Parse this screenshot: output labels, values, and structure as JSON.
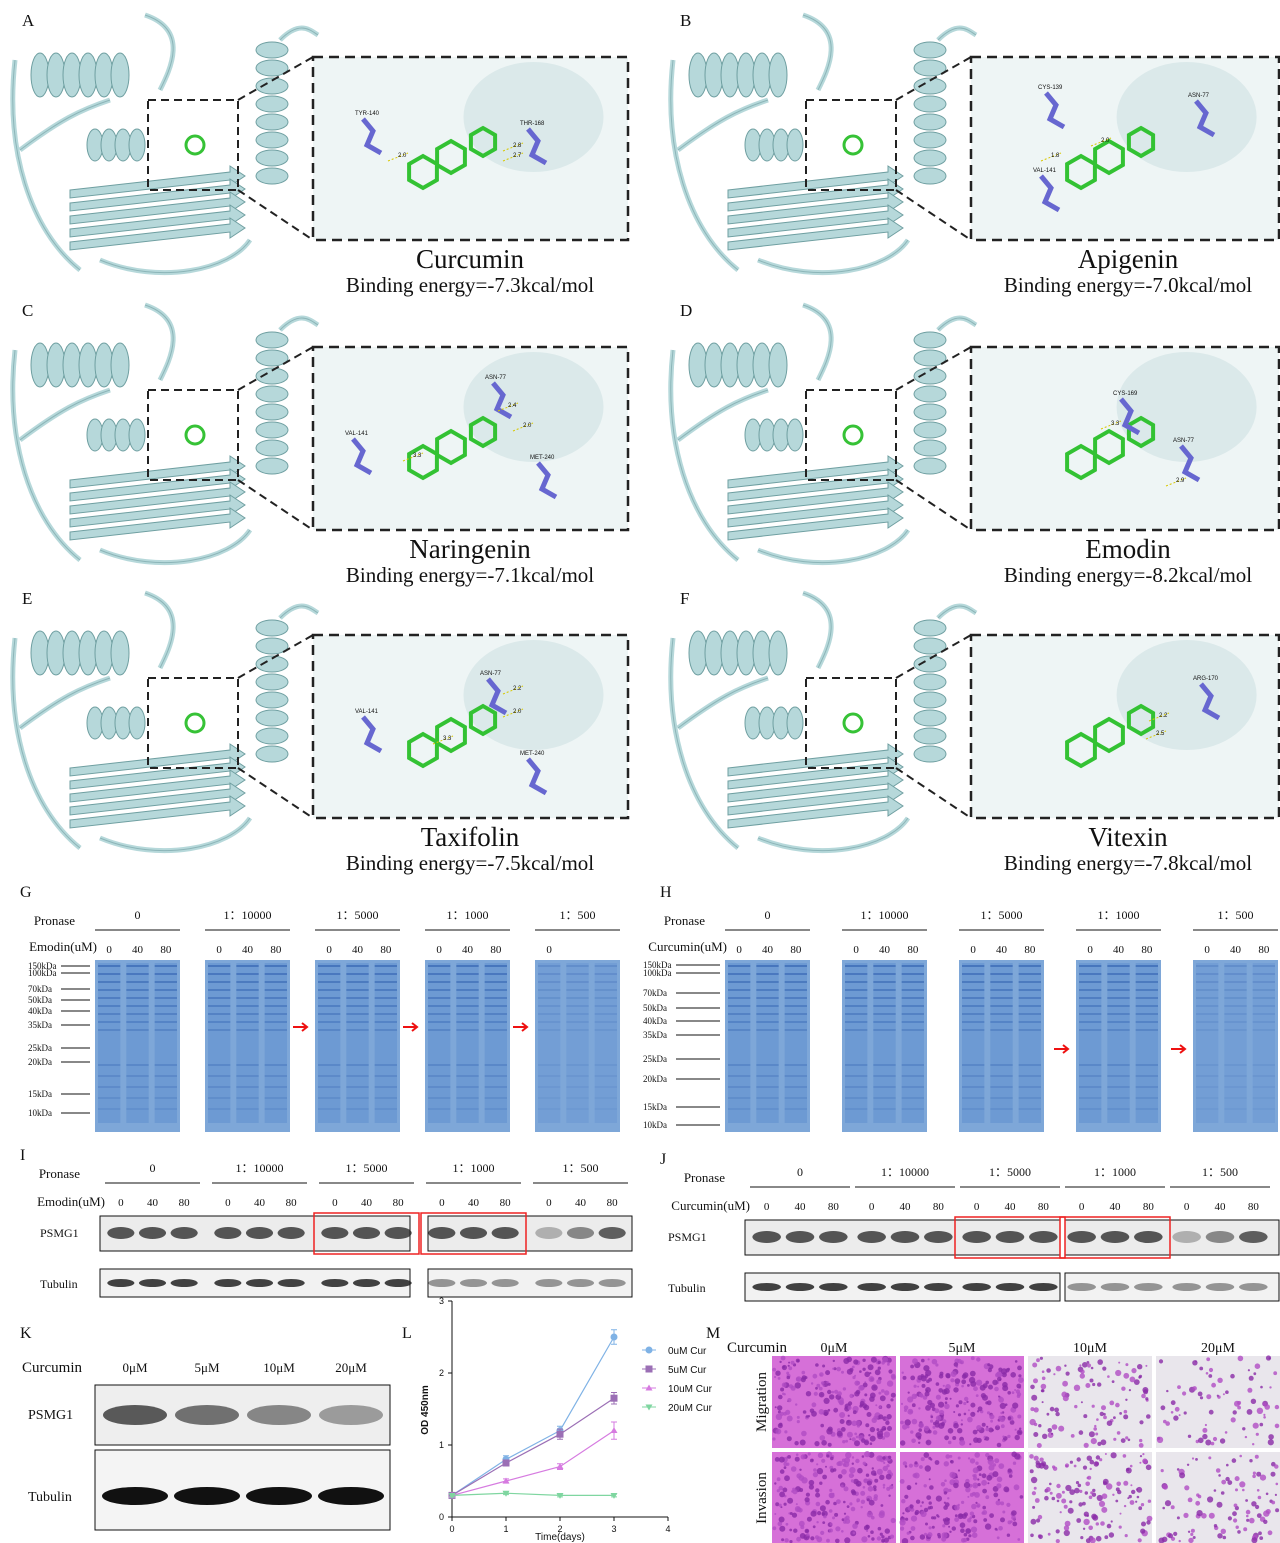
{
  "docking": [
    {
      "letter": "A",
      "ligand": "Curcumin",
      "energy": "Binding energy=-7.3kcal/mol",
      "residues": [
        "TYR-140",
        "THR-168"
      ],
      "distances": [
        "2.0",
        "2.8",
        "2.7"
      ]
    },
    {
      "letter": "B",
      "ligand": "Apigenin",
      "energy": "Binding energy=-7.0kcal/mol",
      "residues": [
        "CYS-139",
        "ASN-77",
        "VAL-141"
      ],
      "distances": [
        "2.0",
        "1.8"
      ]
    },
    {
      "letter": "C",
      "ligand": "Naringenin",
      "energy": "Binding energy=-7.1kcal/mol",
      "residues": [
        "ASN-77",
        "VAL-141",
        "MET-240"
      ],
      "distances": [
        "2.4",
        "2.0",
        "3.3"
      ]
    },
    {
      "letter": "D",
      "ligand": "Emodin",
      "energy": "Binding energy=-8.2kcal/mol",
      "residues": [
        "CYS-169",
        "ASN-77"
      ],
      "distances": [
        "3.3",
        "2.9"
      ]
    },
    {
      "letter": "E",
      "ligand": "Taxifolin",
      "energy": "Binding energy=-7.5kcal/mol",
      "residues": [
        "VAL-141",
        "ASN-77",
        "MET-240"
      ],
      "distances": [
        "3.3",
        "2.2",
        "2.0"
      ]
    },
    {
      "letter": "F",
      "ligand": "Vitexin",
      "energy": "Binding energy=-7.8kcal/mol",
      "residues": [
        "ARG-170"
      ],
      "distances": [
        "2.2",
        "2.5"
      ]
    }
  ],
  "gel_g": {
    "letter": "G",
    "pronase_label": "Pronase",
    "ratios": [
      "0",
      "1：10000",
      "1：5000",
      "1：1000",
      "1：500"
    ],
    "treatment": "Emodin(uM)",
    "doses": [
      [
        "0",
        "40",
        "80"
      ],
      [
        "0",
        "40",
        "80"
      ],
      [
        "0",
        "40",
        "80"
      ],
      [
        "0",
        "40",
        "80"
      ],
      [
        "0"
      ]
    ],
    "markers": [
      "150kDa",
      "100kDa",
      "70kDa",
      "50kDa",
      "40kDa",
      "35kDa",
      "25kDa",
      "20kDa",
      "15kDa",
      "10kDa"
    ]
  },
  "gel_h": {
    "letter": "H",
    "pronase_label": "Pronase",
    "ratios": [
      "0",
      "1：10000",
      "1：5000",
      "1：1000",
      "1：500"
    ],
    "treatment": "Curcumin(uM)",
    "doses": [
      [
        "0",
        "40",
        "80"
      ],
      [
        "0",
        "40",
        "80"
      ],
      [
        "0",
        "40",
        "80"
      ],
      [
        "0",
        "40",
        "80"
      ],
      [
        "0",
        "40",
        "80"
      ]
    ],
    "markers": [
      "150kDa",
      "100kDa",
      "70kDa",
      "50kDa",
      "40kDa",
      "35kDa",
      "25kDa",
      "20kDa",
      "15kDa",
      "10kDa"
    ]
  },
  "blot_i": {
    "letter": "I",
    "pronase_label": "Pronase",
    "ratios": [
      "0",
      "1：10000",
      "1：5000",
      "1：1000",
      "1：500"
    ],
    "treatment": "Emodin(uM)",
    "doses": [
      [
        "0",
        "40",
        "80"
      ],
      [
        "0",
        "40",
        "80"
      ],
      [
        "0",
        "40",
        "80"
      ],
      [
        "0",
        "40",
        "80"
      ],
      [
        "0",
        "40",
        "80"
      ]
    ],
    "proteins": [
      "PSMG1",
      "Tubulin"
    ]
  },
  "blot_j": {
    "letter": "J",
    "pronase_label": "Pronase",
    "ratios": [
      "0",
      "1：10000",
      "1：5000",
      "1：1000",
      "1：500"
    ],
    "treatment": "Curcumin(uM)",
    "doses": [
      [
        "0",
        "40",
        "80"
      ],
      [
        "0",
        "40",
        "80"
      ],
      [
        "0",
        "40",
        "80"
      ],
      [
        "0",
        "40",
        "80"
      ],
      [
        "0",
        "40",
        "80"
      ]
    ],
    "proteins": [
      "PSMG1",
      "Tubulin"
    ]
  },
  "blot_k": {
    "letter": "K",
    "treatment": "Curcumin",
    "doses": [
      "0μM",
      "5μM",
      "10μM",
      "20μM"
    ],
    "proteins": [
      "PSMG1",
      "Tubulin"
    ]
  },
  "chart_data": {
    "type": "line",
    "letter": "L",
    "x_label": "Time(days)",
    "y_label": "OD 450nm",
    "x": [
      0,
      1,
      2,
      3
    ],
    "xlim": [
      0,
      4
    ],
    "xticks": [
      0,
      1,
      2,
      3,
      4
    ],
    "ylim": [
      0,
      3
    ],
    "yticks": [
      0,
      1,
      2,
      3
    ],
    "series": [
      {
        "name": "0uM Cur",
        "color": "#7fb2e5",
        "marker": "circle",
        "values": [
          0.3,
          0.8,
          1.2,
          2.5
        ],
        "errors": [
          0.02,
          0.05,
          0.06,
          0.1
        ]
      },
      {
        "name": "5uM Cur",
        "color": "#9b6fb5",
        "marker": "square",
        "values": [
          0.3,
          0.75,
          1.15,
          1.65
        ],
        "errors": [
          0.02,
          0.04,
          0.07,
          0.08
        ]
      },
      {
        "name": "10uM Cur",
        "color": "#d67be0",
        "marker": "triangle-up",
        "values": [
          0.3,
          0.5,
          0.7,
          1.2
        ],
        "errors": [
          0.02,
          0.03,
          0.04,
          0.12
        ]
      },
      {
        "name": "20uM Cur",
        "color": "#7fd6a0",
        "marker": "triangle-down",
        "values": [
          0.3,
          0.33,
          0.3,
          0.3
        ],
        "errors": [
          0.02,
          0.02,
          0.02,
          0.02
        ]
      }
    ]
  },
  "assay_m": {
    "letter": "M",
    "treatment": "Curcumin",
    "doses": [
      "0μM",
      "5μM",
      "10μM",
      "20μM"
    ],
    "assays": [
      "Migration",
      "Invasion"
    ]
  }
}
